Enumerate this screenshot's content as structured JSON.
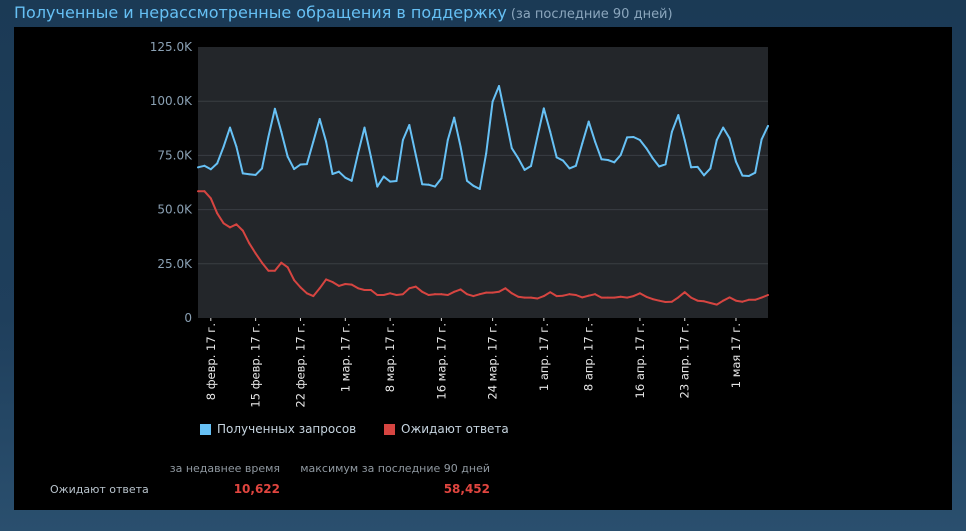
{
  "header": {
    "title": "Полученные и нерассмотренные обращения в поддержку",
    "subtitle": "(за последние 90 дней)"
  },
  "chart_data": {
    "type": "line",
    "ylim": [
      0,
      125000
    ],
    "yticks": [
      {
        "value": 0,
        "label": "0"
      },
      {
        "value": 25000,
        "label": "25.0K"
      },
      {
        "value": 50000,
        "label": "50.0K"
      },
      {
        "value": 75000,
        "label": "75.0K"
      },
      {
        "value": 100000,
        "label": "100.0K"
      },
      {
        "value": 125000,
        "label": "125.0K"
      }
    ],
    "xticks": [
      {
        "date": "2017-02-08",
        "label": "8 февр. 17 г."
      },
      {
        "date": "2017-02-15",
        "label": "15 февр. 17 г."
      },
      {
        "date": "2017-02-22",
        "label": "22 февр. 17 г."
      },
      {
        "date": "2017-03-01",
        "label": "1 мар. 17 г."
      },
      {
        "date": "2017-03-08",
        "label": "8 мар. 17 г."
      },
      {
        "date": "2017-03-16",
        "label": "16 мар. 17 г."
      },
      {
        "date": "2017-03-24",
        "label": "24 мар. 17 г."
      },
      {
        "date": "2017-04-01",
        "label": "1 апр. 17 г."
      },
      {
        "date": "2017-04-08",
        "label": "8 апр. 17 г."
      },
      {
        "date": "2017-04-16",
        "label": "16 апр. 17 г."
      },
      {
        "date": "2017-04-23",
        "label": "23 апр. 17 г."
      },
      {
        "date": "2017-05-01",
        "label": "1 мая 17 г."
      }
    ],
    "grid": true,
    "legend": "bottom",
    "x": [
      "2017-02-06",
      "2017-02-07",
      "2017-02-08",
      "2017-02-09",
      "2017-02-10",
      "2017-02-11",
      "2017-02-12",
      "2017-02-13",
      "2017-02-14",
      "2017-02-15",
      "2017-02-16",
      "2017-02-17",
      "2017-02-18",
      "2017-02-19",
      "2017-02-20",
      "2017-02-21",
      "2017-02-22",
      "2017-02-23",
      "2017-02-24",
      "2017-02-25",
      "2017-02-26",
      "2017-02-27",
      "2017-02-28",
      "2017-03-01",
      "2017-03-02",
      "2017-03-03",
      "2017-03-04",
      "2017-03-05",
      "2017-03-06",
      "2017-03-07",
      "2017-03-08",
      "2017-03-09",
      "2017-03-10",
      "2017-03-11",
      "2017-03-12",
      "2017-03-13",
      "2017-03-14",
      "2017-03-15",
      "2017-03-16",
      "2017-03-17",
      "2017-03-18",
      "2017-03-19",
      "2017-03-20",
      "2017-03-21",
      "2017-03-22",
      "2017-03-23",
      "2017-03-24",
      "2017-03-25",
      "2017-03-26",
      "2017-03-27",
      "2017-03-28",
      "2017-03-29",
      "2017-03-30",
      "2017-03-31",
      "2017-04-01",
      "2017-04-02",
      "2017-04-03",
      "2017-04-04",
      "2017-04-05",
      "2017-04-06",
      "2017-04-07",
      "2017-04-08",
      "2017-04-09",
      "2017-04-10",
      "2017-04-11",
      "2017-04-12",
      "2017-04-13",
      "2017-04-14",
      "2017-04-15",
      "2017-04-16",
      "2017-04-17",
      "2017-04-18",
      "2017-04-19",
      "2017-04-20",
      "2017-04-21",
      "2017-04-22",
      "2017-04-23",
      "2017-04-24",
      "2017-04-25",
      "2017-04-26",
      "2017-04-27",
      "2017-04-28",
      "2017-04-29",
      "2017-04-30",
      "2017-05-01",
      "2017-05-02",
      "2017-05-03",
      "2017-05-04",
      "2017-05-05",
      "2017-05-06"
    ],
    "series": [
      {
        "name": "Полученных запросов",
        "color": "#67c1f5",
        "values": [
          69500,
          70200,
          68600,
          71300,
          79000,
          87800,
          79000,
          66700,
          66300,
          66000,
          69000,
          83600,
          96500,
          85900,
          74400,
          68700,
          70800,
          71000,
          81300,
          91800,
          81300,
          66400,
          67500,
          64700,
          63300,
          76000,
          87800,
          74400,
          60600,
          65200,
          62900,
          63200,
          82100,
          89000,
          75200,
          61700,
          61500,
          60600,
          64400,
          82100,
          92400,
          79000,
          63300,
          61000,
          59500,
          76000,
          99800,
          107000,
          92900,
          78300,
          73700,
          68300,
          70100,
          83600,
          96700,
          85900,
          74100,
          72600,
          69000,
          70200,
          80600,
          90600,
          81300,
          73200,
          72900,
          71800,
          75200,
          83300,
          83500,
          82100,
          78300,
          73700,
          69900,
          70900,
          85900,
          93600,
          82100,
          69500,
          69700,
          65800,
          69000,
          82100,
          87800,
          82900,
          72100,
          65700,
          65500,
          67000,
          82400,
          88600
        ]
      },
      {
        "name": "Ожидают ответа",
        "color": "#d64541",
        "values": [
          58452,
          58500,
          55200,
          48300,
          43700,
          41800,
          43200,
          40300,
          34500,
          29800,
          25500,
          21800,
          21800,
          25500,
          23400,
          17500,
          14100,
          11400,
          10100,
          13700,
          17800,
          16600,
          14800,
          15700,
          15400,
          13700,
          12900,
          12900,
          10600,
          10600,
          11400,
          10600,
          11000,
          13700,
          14500,
          12100,
          10600,
          11000,
          11000,
          10600,
          12100,
          13200,
          11000,
          10100,
          11000,
          11700,
          11700,
          12100,
          13700,
          11400,
          9800,
          9400,
          9400,
          9000,
          10100,
          11900,
          10100,
          10300,
          11000,
          10600,
          9500,
          10300,
          11000,
          9400,
          9400,
          9400,
          9800,
          9400,
          10100,
          11400,
          9800,
          8700,
          8000,
          7400,
          7500,
          9500,
          11900,
          9400,
          8000,
          7700,
          6900,
          6200,
          8000,
          9500,
          8000,
          7500,
          8400,
          8400,
          9400,
          10622
        ]
      }
    ]
  },
  "stats": {
    "col_recent": "за недавнее время",
    "col_max": "максимум за последние 90 дней",
    "row_label": "Ожидают ответа",
    "recent_value": "10,622",
    "max_value": "58,452"
  }
}
